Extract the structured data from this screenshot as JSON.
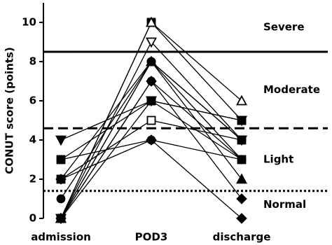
{
  "chart_data": {
    "type": "paired-line",
    "y_label": "CONUT score (points)",
    "categories": [
      "admission",
      "POD3",
      "discharge"
    ],
    "ylim": [
      0,
      11
    ],
    "yticks": [
      0,
      2,
      4,
      6,
      8,
      10
    ],
    "color": "#000000",
    "series": [
      {
        "marker": "square",
        "filled": true,
        "values": [
          0,
          10,
          5
        ]
      },
      {
        "marker": "triangle-down",
        "filled": false,
        "values": [
          0,
          9,
          4
        ]
      },
      {
        "marker": "circle",
        "filled": true,
        "values": [
          0,
          8,
          4
        ]
      },
      {
        "marker": "circle",
        "filled": true,
        "values": [
          1,
          8,
          3
        ]
      },
      {
        "marker": "circle",
        "filled": true,
        "values": [
          0,
          7,
          3
        ]
      },
      {
        "marker": "square",
        "filled": true,
        "values": [
          3,
          6,
          3
        ]
      },
      {
        "marker": "square",
        "filled": false,
        "values": [
          2,
          5,
          4
        ]
      },
      {
        "marker": "diamond",
        "filled": true,
        "values": [
          2,
          4,
          0
        ]
      },
      {
        "marker": "triangle",
        "filled": true,
        "values": [
          0,
          8,
          2
        ]
      },
      {
        "marker": "triangle",
        "filled": false,
        "values": [
          0,
          10,
          6
        ]
      },
      {
        "marker": "triangle-down",
        "filled": true,
        "values": [
          4,
          6,
          5
        ]
      },
      {
        "marker": "circle",
        "filled": true,
        "values": [
          3,
          4,
          3
        ]
      },
      {
        "marker": "diamond",
        "filled": true,
        "values": [
          0,
          7,
          1
        ]
      },
      {
        "marker": "circle",
        "filled": true,
        "values": [
          2,
          8,
          4
        ]
      },
      {
        "marker": "square",
        "filled": true,
        "values": [
          0,
          6,
          5
        ]
      }
    ],
    "reference_lines": [
      {
        "value": 8.5,
        "style": "solid"
      },
      {
        "value": 4.6,
        "style": "dashed"
      },
      {
        "value": 1.4,
        "style": "dotted"
      }
    ],
    "zones": [
      "Severe",
      "Moderate",
      "Light",
      "Normal"
    ]
  }
}
